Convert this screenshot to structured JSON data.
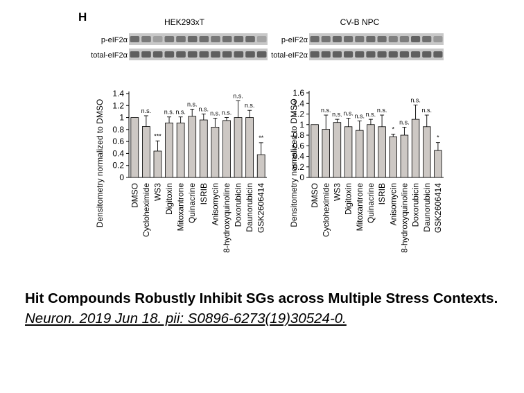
{
  "panel_label": "H",
  "blot_labels": {
    "top": "p-eIF2α",
    "bottom": "total-eIF2α"
  },
  "caption": {
    "title": "Hit Compounds Robustly Inhibit SGs across Multiple Stress Contexts.",
    "reference": "Neuron. 2019 Jun 18. pii: S0896-6273(19)30524-0."
  },
  "colors": {
    "bar": "#cdc8c4",
    "blot_bg": "#c8c8c8",
    "band": "#5a5a5a"
  },
  "chart_data": [
    {
      "type": "bar",
      "title": "HEK293xT",
      "ylabel": "Densitometry normalized to DMSO",
      "xlabel": "",
      "ylim": [
        0,
        1.4
      ],
      "yticks": [
        "0",
        "0.2",
        "0.4",
        "0.6",
        "0.8",
        "1",
        "1.2",
        "1.4"
      ],
      "grid": false,
      "categories": [
        "DMSO",
        "Cycloheximide",
        "WS3",
        "Digitoxin",
        "Mitoxantrone",
        "Quinacrine",
        "ISRIB",
        "Anisomycin",
        "8-hydroxyquinoline",
        "Doxorubicin",
        "Daunorubicin",
        "GSK2606414"
      ],
      "values": [
        1.0,
        0.85,
        0.44,
        0.91,
        0.91,
        1.02,
        0.96,
        0.84,
        0.95,
        1.0,
        1.0,
        0.38
      ],
      "errors": [
        0.0,
        0.18,
        0.17,
        0.1,
        0.1,
        0.12,
        0.1,
        0.15,
        0.05,
        0.28,
        0.12,
        0.2
      ],
      "significance": [
        "",
        "n.s.",
        "***",
        "n.s.",
        "n.s.",
        "n.s.",
        "n.s.",
        "n.s.",
        "n.s.",
        "n.s.",
        "n.s.",
        "**"
      ]
    },
    {
      "type": "bar",
      "title": "CV-B NPC",
      "ylabel": "Densitometry normalized to DMSO",
      "xlabel": "",
      "ylim": [
        0,
        1.6
      ],
      "yticks": [
        "0",
        "0.2",
        "0.4",
        "0.6",
        "0.8",
        "1",
        "1.2",
        "1.4",
        "1.6"
      ],
      "grid": false,
      "categories": [
        "DMSO",
        "Cycloheximide",
        "WS3",
        "Digitoxin",
        "Mitoxantrone",
        "Quinacrine",
        "ISRIB",
        "Anisomycin",
        "8-hydroxyquinoline",
        "Doxorubicin",
        "Daunorubicin",
        "GSK2606414"
      ],
      "values": [
        1.0,
        0.91,
        1.04,
        0.96,
        0.89,
        1.0,
        0.96,
        0.77,
        0.8,
        1.1,
        0.96,
        0.51
      ],
      "errors": [
        0.0,
        0.27,
        0.06,
        0.16,
        0.18,
        0.1,
        0.22,
        0.05,
        0.15,
        0.27,
        0.22,
        0.15
      ],
      "significance": [
        "",
        "n.s.",
        "n.s.",
        "n.s.",
        "n.s.",
        "n.s.",
        "n.s.",
        "*",
        "n.s.",
        "n.s.",
        "n.s.",
        "*"
      ]
    }
  ]
}
